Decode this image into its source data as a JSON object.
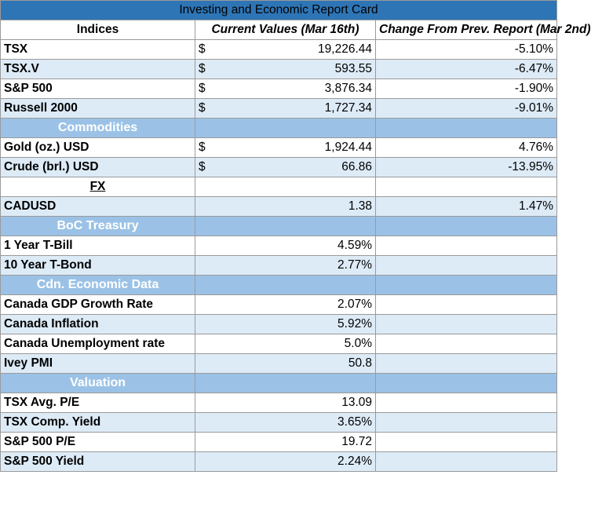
{
  "title": "Investing and Economic Report Card",
  "header": {
    "col1": "Indices",
    "col2": "Current Values (Mar 16th)",
    "col3": "Change From Prev. Report (Mar 2nd)"
  },
  "currency_symbol": "$",
  "indices": [
    {
      "name": "TSX",
      "value": "19,226.44",
      "change": "-5.10%"
    },
    {
      "name": "TSX.V",
      "value": "593.55",
      "change": "-6.47%"
    },
    {
      "name": "S&P 500",
      "value": "3,876.34",
      "change": "-1.90%"
    },
    {
      "name": "Russell 2000",
      "value": "1,727.34",
      "change": "-9.01%"
    }
  ],
  "sections": {
    "commodities": "Commodities",
    "fx": "FX",
    "boc": "BoC Treasury",
    "econ": "Cdn. Economic Data",
    "valuation": "Valuation"
  },
  "commodities": [
    {
      "name": "Gold (oz.) USD",
      "value": "1,924.44",
      "change": "4.76%"
    },
    {
      "name": "Crude (brl.) USD",
      "value": "66.86",
      "change": "-13.95%"
    }
  ],
  "fx": [
    {
      "name": "CADUSD",
      "value": "1.38",
      "change": "1.47%"
    }
  ],
  "boc": [
    {
      "name": "1 Year T-Bill",
      "value": "4.59%"
    },
    {
      "name": "10 Year T-Bond",
      "value": "2.77%"
    }
  ],
  "econ": [
    {
      "name": "Canada GDP Growth Rate",
      "value": "2.07%"
    },
    {
      "name": "Canada Inflation",
      "value": "5.92%"
    },
    {
      "name": "Canada Unemployment rate",
      "value": "5.0%"
    },
    {
      "name": "Ivey PMI",
      "value": "50.8"
    }
  ],
  "valuation": [
    {
      "name": "TSX Avg. P/E",
      "value": "13.09"
    },
    {
      "name": "TSX Comp. Yield",
      "value": "3.65%"
    },
    {
      "name": "S&P 500 P/E",
      "value": "19.72"
    },
    {
      "name": "S&P 500 Yield",
      "value": "2.24%"
    }
  ]
}
